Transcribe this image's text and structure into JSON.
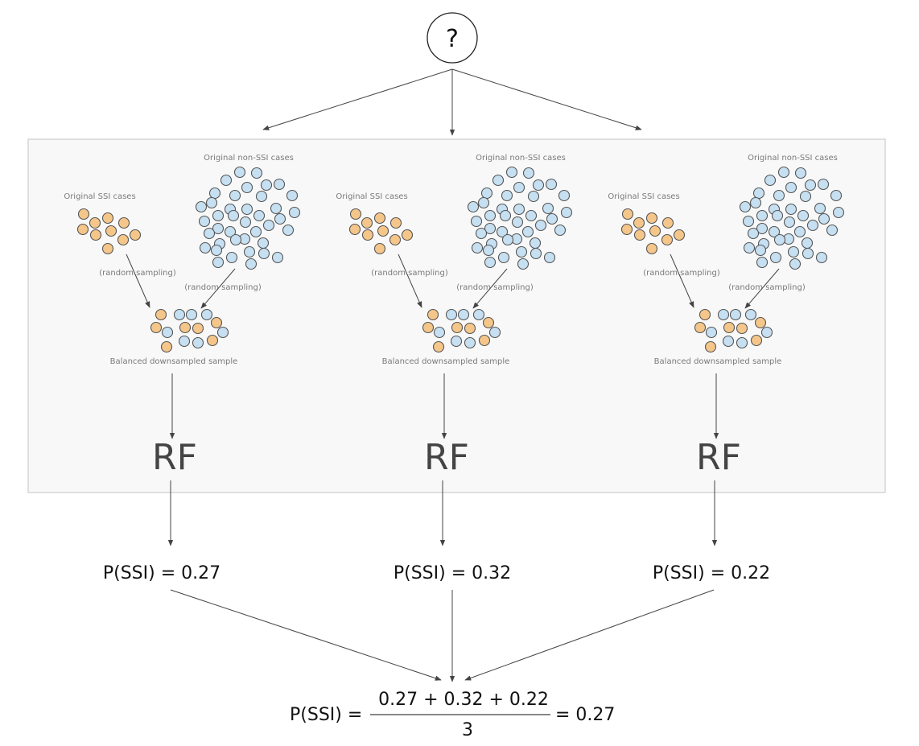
{
  "root": {
    "symbol": "?"
  },
  "colors": {
    "ssi": "#f5c68a",
    "non_ssi": "#c6e0f2",
    "outline": "#555555",
    "panel": "#f8f8f8",
    "panel_border": "#d6d6d6",
    "arrow": "#444444"
  },
  "icons": {
    "ssi_case": "orange-circle-icon",
    "non_ssi_case": "blue-circle-icon"
  },
  "labels": {
    "ssi_cases": "Original SSI cases",
    "non_ssi_cases": "Original non-SSI cases",
    "sampling": "(random sampling)",
    "balanced": "Balanced downsampled sample",
    "model": "RF"
  },
  "branches": [
    {
      "probability_text": "P(SSI) = 0.27",
      "probability": 0.27
    },
    {
      "probability_text": "P(SSI) = 0.32",
      "probability": 0.32
    },
    {
      "probability_text": "P(SSI) = 0.22",
      "probability": 0.22
    }
  ],
  "formula": {
    "lhs": "P(SSI) =",
    "numerator": "0.27 + 0.32 + 0.22",
    "denominator": "3",
    "result": "= 0.27"
  }
}
